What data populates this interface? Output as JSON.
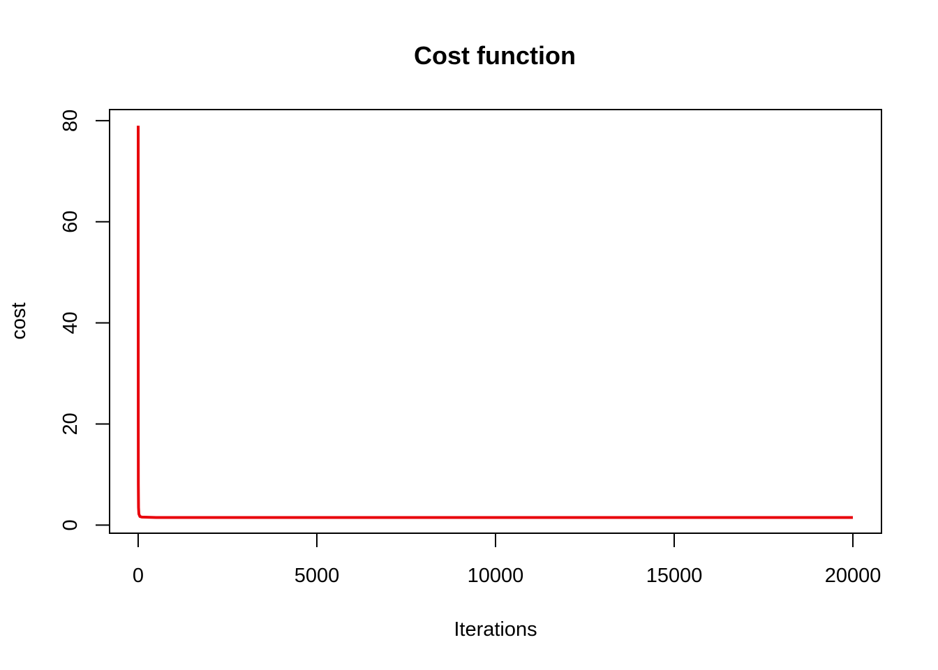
{
  "chart_data": {
    "type": "line",
    "title": "Cost function",
    "xlabel": "Iterations",
    "ylabel": "cost",
    "xlim": [
      -800,
      20800
    ],
    "ylim": [
      -1.6,
      82.2
    ],
    "xticks": [
      0,
      5000,
      10000,
      15000,
      20000
    ],
    "yticks": [
      0,
      20,
      40,
      60,
      80
    ],
    "xtick_labels": [
      "0",
      "5000",
      "10000",
      "15000",
      "20000"
    ],
    "ytick_labels": [
      "0",
      "20",
      "40",
      "60",
      "80"
    ],
    "grid": false,
    "legend": "none",
    "series": [
      {
        "color": "#e8000b",
        "x": [
          1,
          2,
          3,
          5,
          10,
          20,
          50,
          100,
          500,
          1000,
          5000,
          10000,
          15000,
          20000
        ],
        "y": [
          79,
          40,
          20,
          8,
          3.5,
          2.2,
          1.7,
          1.6,
          1.5,
          1.5,
          1.5,
          1.5,
          1.5,
          1.5
        ]
      }
    ]
  }
}
